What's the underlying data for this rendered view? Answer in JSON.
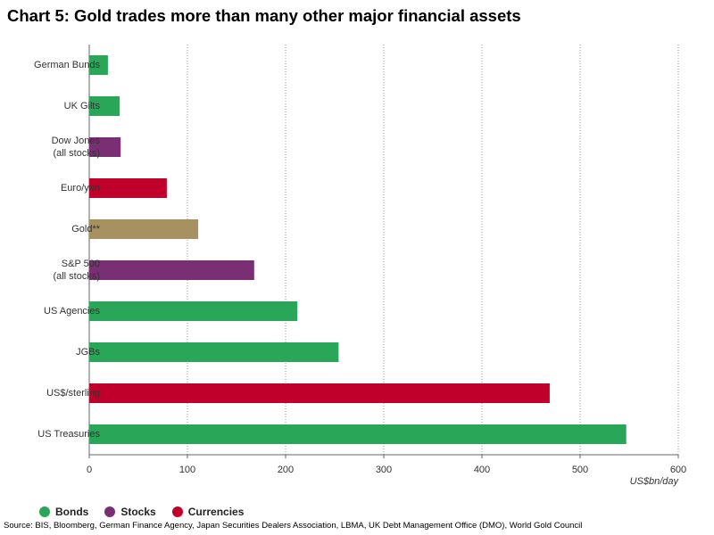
{
  "chart_data": {
    "type": "bar",
    "orientation": "horizontal",
    "title": "Chart 5: Gold trades more than many other major financial assets",
    "unit_label": "US$bn/day",
    "xlim": [
      0,
      600
    ],
    "xticks": [
      "0",
      "100",
      "200",
      "300",
      "400",
      "500",
      "600"
    ],
    "grid": "vertical dotted",
    "categories": [
      {
        "label": [
          "German Bunds"
        ],
        "value": 19,
        "group": "Bonds"
      },
      {
        "label": [
          "UK Gilts"
        ],
        "value": 31,
        "group": "Bonds"
      },
      {
        "label": [
          "Dow Jones",
          "(all stocks)"
        ],
        "value": 32,
        "group": "Stocks"
      },
      {
        "label": [
          "Euro/yen"
        ],
        "value": 79,
        "group": "Currencies"
      },
      {
        "label": [
          "Gold**"
        ],
        "value": 111,
        "group": "Gold"
      },
      {
        "label": [
          "S&P 500",
          "(all stocks)"
        ],
        "value": 168,
        "group": "Stocks"
      },
      {
        "label": [
          "US Agencies"
        ],
        "value": 212,
        "group": "Bonds"
      },
      {
        "label": [
          "JGBs"
        ],
        "value": 254,
        "group": "Bonds"
      },
      {
        "label": [
          "US$/sterling"
        ],
        "value": 469,
        "group": "Currencies"
      },
      {
        "label": [
          "US Treasuries"
        ],
        "value": 547,
        "group": "Bonds"
      }
    ],
    "colors": {
      "Bonds": "#2aa659",
      "Stocks": "#7a2e73",
      "Currencies": "#c0002a",
      "Gold": "#a89160"
    },
    "legend": [
      {
        "name": "Bonds",
        "color": "#2aa659"
      },
      {
        "name": "Stocks",
        "color": "#7a2e73"
      },
      {
        "name": "Currencies",
        "color": "#c0002a"
      }
    ],
    "legend_position": "bottom-left"
  },
  "source": "Source: BIS, Bloomberg, German Finance Agency, Japan Securities Dealers Association, LBMA, UK Debt Management Office (DMO), World Gold Council"
}
